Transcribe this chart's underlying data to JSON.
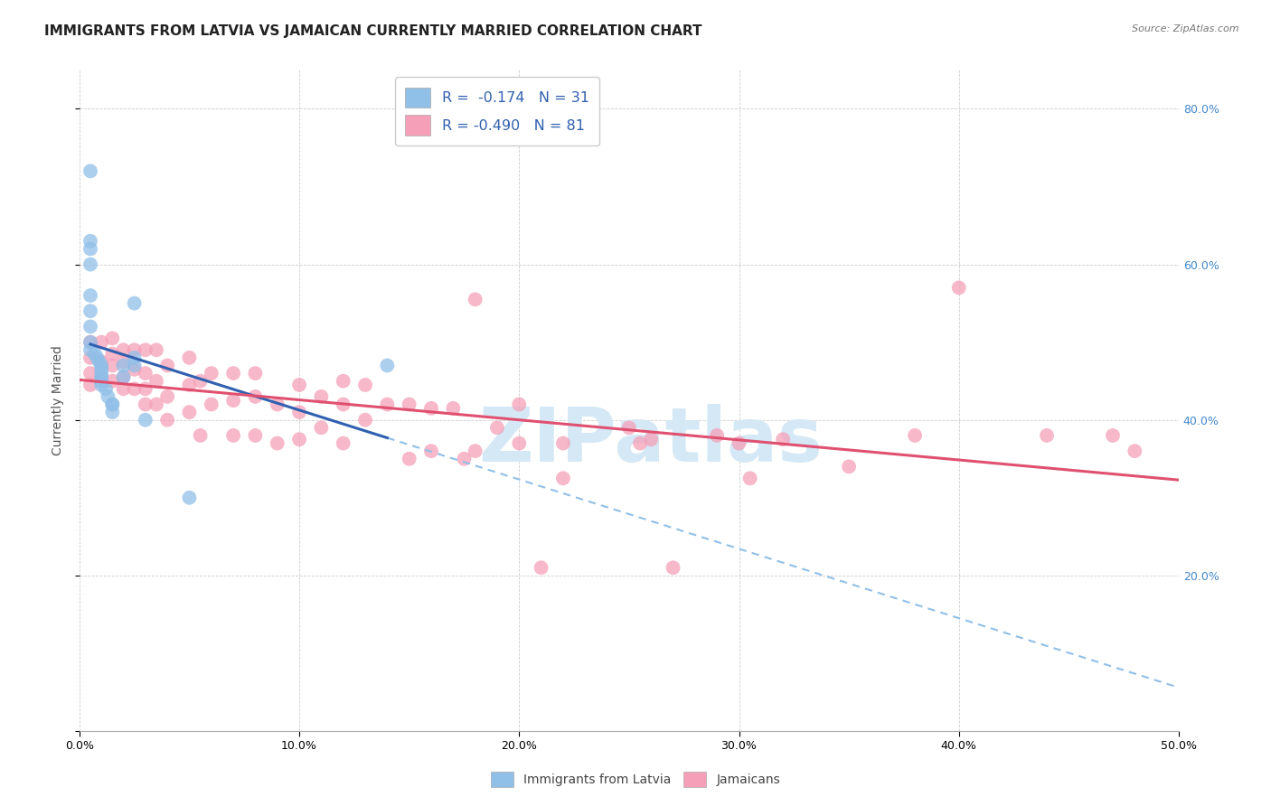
{
  "title": "IMMIGRANTS FROM LATVIA VS JAMAICAN CURRENTLY MARRIED CORRELATION CHART",
  "source": "Source: ZipAtlas.com",
  "ylabel_label": "Currently Married",
  "xlim": [
    0.0,
    0.5
  ],
  "ylim": [
    0.0,
    0.85
  ],
  "xticks": [
    0.0,
    0.1,
    0.2,
    0.3,
    0.4,
    0.5
  ],
  "yticks": [
    0.0,
    0.2,
    0.4,
    0.6,
    0.8
  ],
  "ytick_labels_right": [
    "",
    "20.0%",
    "40.0%",
    "60.0%",
    "80.0%"
  ],
  "xtick_labels": [
    "0.0%",
    "10.0%",
    "20.0%",
    "30.0%",
    "40.0%",
    "50.0%"
  ],
  "color_blue": "#90bfe8",
  "color_pink": "#f5a0b8",
  "color_blue_line": "#3060b0",
  "color_pink_line": "#e05070",
  "color_blue_dashed": "#90bfe8",
  "watermark": "ZIPatlas",
  "watermark_color": "#d5e8f5",
  "watermark_fontsize": 60,
  "blue_x": [
    0.005,
    0.005,
    0.005,
    0.005,
    0.005,
    0.005,
    0.005,
    0.005,
    0.005,
    0.007,
    0.008,
    0.009,
    0.01,
    0.01,
    0.01,
    0.01,
    0.01,
    0.01,
    0.012,
    0.013,
    0.015,
    0.015,
    0.015,
    0.02,
    0.02,
    0.025,
    0.025,
    0.025,
    0.03,
    0.05,
    0.14
  ],
  "blue_y": [
    0.72,
    0.63,
    0.62,
    0.6,
    0.56,
    0.54,
    0.52,
    0.5,
    0.49,
    0.485,
    0.48,
    0.475,
    0.47,
    0.465,
    0.46,
    0.455,
    0.45,
    0.445,
    0.44,
    0.43,
    0.42,
    0.42,
    0.41,
    0.47,
    0.455,
    0.55,
    0.48,
    0.47,
    0.4,
    0.3,
    0.47
  ],
  "pink_x": [
    0.005,
    0.005,
    0.005,
    0.005,
    0.01,
    0.01,
    0.01,
    0.015,
    0.015,
    0.015,
    0.015,
    0.02,
    0.02,
    0.02,
    0.02,
    0.025,
    0.025,
    0.025,
    0.03,
    0.03,
    0.03,
    0.03,
    0.035,
    0.035,
    0.035,
    0.04,
    0.04,
    0.04,
    0.05,
    0.05,
    0.05,
    0.055,
    0.055,
    0.06,
    0.06,
    0.07,
    0.07,
    0.07,
    0.08,
    0.08,
    0.08,
    0.09,
    0.09,
    0.1,
    0.1,
    0.1,
    0.11,
    0.11,
    0.12,
    0.12,
    0.12,
    0.13,
    0.13,
    0.14,
    0.15,
    0.15,
    0.16,
    0.16,
    0.17,
    0.175,
    0.18,
    0.18,
    0.19,
    0.2,
    0.2,
    0.21,
    0.22,
    0.22,
    0.25,
    0.255,
    0.26,
    0.27,
    0.29,
    0.3,
    0.305,
    0.32,
    0.35,
    0.38,
    0.4,
    0.44,
    0.47,
    0.48
  ],
  "pink_y": [
    0.5,
    0.48,
    0.46,
    0.445,
    0.5,
    0.475,
    0.455,
    0.505,
    0.485,
    0.47,
    0.45,
    0.49,
    0.475,
    0.455,
    0.44,
    0.49,
    0.465,
    0.44,
    0.49,
    0.46,
    0.44,
    0.42,
    0.49,
    0.45,
    0.42,
    0.47,
    0.43,
    0.4,
    0.48,
    0.445,
    0.41,
    0.45,
    0.38,
    0.46,
    0.42,
    0.46,
    0.425,
    0.38,
    0.46,
    0.43,
    0.38,
    0.42,
    0.37,
    0.445,
    0.41,
    0.375,
    0.43,
    0.39,
    0.45,
    0.42,
    0.37,
    0.445,
    0.4,
    0.42,
    0.42,
    0.35,
    0.415,
    0.36,
    0.415,
    0.35,
    0.555,
    0.36,
    0.39,
    0.42,
    0.37,
    0.21,
    0.37,
    0.325,
    0.39,
    0.37,
    0.375,
    0.21,
    0.38,
    0.37,
    0.325,
    0.375,
    0.34,
    0.38,
    0.57,
    0.38,
    0.38,
    0.36
  ],
  "grid_color": "#cccccc",
  "bg_color": "#ffffff",
  "title_fontsize": 11,
  "axis_label_fontsize": 10,
  "tick_fontsize": 9,
  "legend_text_color": "#3060b0"
}
